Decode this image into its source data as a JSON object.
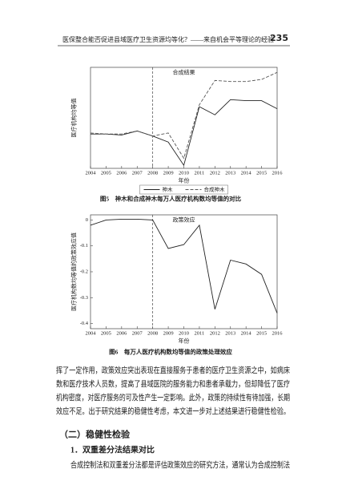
{
  "header": {
    "title": "医保整合能否促进县域医疗卫生资源均等化？——来自机会平等理论的经验",
    "page": "235"
  },
  "chart_data": [
    {
      "type": "line",
      "title": "合成结果",
      "ylabel": "医疗机构均等值",
      "xlabel": "年份",
      "caption": "图5　神木和合成神木每万人医疗机构数均等值的对比",
      "x": [
        2004,
        2005,
        2006,
        2007,
        2008,
        2009,
        2010,
        2011,
        2012,
        2013,
        2014,
        2015,
        2016
      ],
      "xlim": [
        2004,
        2016
      ],
      "xticks": [
        2004,
        2005,
        2006,
        2007,
        2008,
        2009,
        2010,
        2011,
        2012,
        2013,
        2014,
        2015,
        2016
      ],
      "ylim": [
        0.1,
        1.1
      ],
      "vline": 2008,
      "series": [
        {
          "name": "神木",
          "color": "#222222",
          "dash": false,
          "values": [
            0.44,
            0.44,
            0.43,
            0.47,
            0.42,
            0.36,
            0.13,
            0.71,
            0.63,
            0.78,
            0.77,
            0.77,
            0.69
          ]
        },
        {
          "name": "合成神木",
          "color": "#555555",
          "dash": true,
          "values": [
            0.45,
            0.44,
            0.44,
            0.47,
            0.42,
            0.45,
            0.2,
            0.73,
            0.97,
            0.96,
            0.96,
            0.98,
            1.05
          ]
        }
      ],
      "legend": "bottom"
    },
    {
      "type": "line",
      "title": "政策效应",
      "ylabel": "医疗机构数均等值的政策效应值",
      "xlabel": "年份",
      "caption": "图6　每万人医疗机构数均等值的政策处理效应",
      "x": [
        2004,
        2005,
        2006,
        2007,
        2008,
        2009,
        2010,
        2011,
        2012,
        2013,
        2014,
        2015,
        2016
      ],
      "xlim": [
        2004,
        2016
      ],
      "xticks": [
        2004,
        2005,
        2006,
        2007,
        2008,
        2009,
        2010,
        2011,
        2012,
        2013,
        2014,
        2015,
        2016
      ],
      "ylim": [
        -0.42,
        0.02
      ],
      "yticks": [
        -0.4,
        -0.3,
        -0.2,
        -0.1,
        0
      ],
      "vline": 2008,
      "series": [
        {
          "color": "#222222",
          "dash": false,
          "values": [
            -0.02,
            0.0,
            0.003,
            0.003,
            0.0,
            -0.11,
            -0.095,
            -0.02,
            -0.345,
            -0.155,
            -0.17,
            -0.21,
            -0.36
          ]
        }
      ]
    }
  ],
  "body": {
    "paragraph": [
      "挥了一定作用，政策效应突出表现在直接服务于患者的医疗卫生资源之中，如病床",
      "数和医疗技术人员数，提高了县域医院的服务能力和患者承载力，但却降低了医疗",
      "机构密度，对医疗服务的可及性产生一定影响。此外，政策的持续性有待加强，长期",
      "效应不足。出于研究结果的稳健性考虑，本文进一步对上述结果进行稳健性检验。"
    ],
    "section": "（二）稳健性检验",
    "subsection": "1．双重差分法结果对比",
    "last_line": "合成控制法和双重差分法都是评估政策效应的研究方法，通常认为合成控制法"
  }
}
